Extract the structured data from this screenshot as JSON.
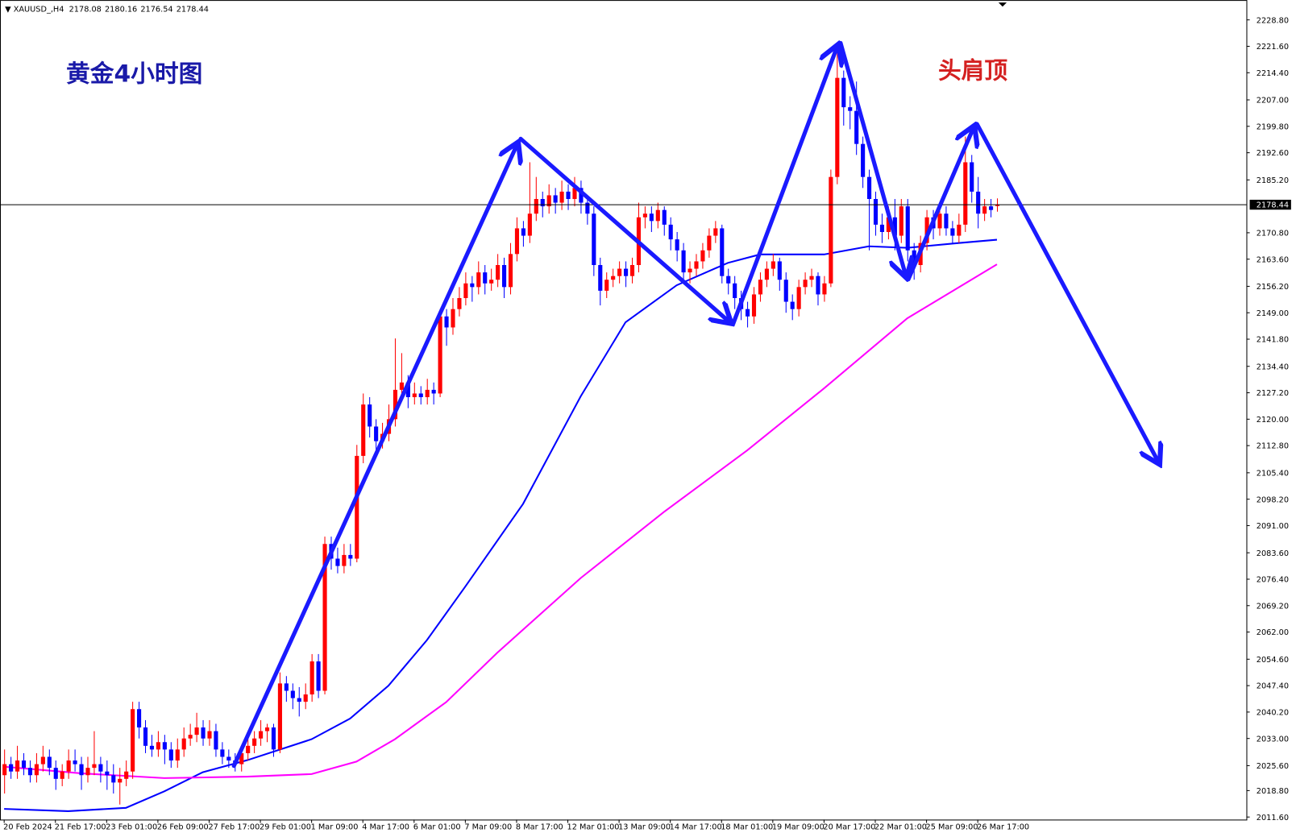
{
  "chart_data": {
    "type": "candlestick",
    "symbol": "XAUUSD_,H4",
    "title": "黄金4小时图",
    "annotation": "头肩顶",
    "up_color": "#ff0000",
    "down_color": "#0000ff",
    "candles": [
      [
        2023,
        2030,
        2018,
        2026
      ],
      [
        2026,
        2028,
        2022,
        2024
      ],
      [
        2024,
        2031,
        2022,
        2027
      ],
      [
        2027,
        2029,
        2023,
        2025
      ],
      [
        2025,
        2027,
        2021,
        2023
      ],
      [
        2023,
        2029,
        2021,
        2026
      ],
      [
        2026,
        2031,
        2024,
        2028
      ],
      [
        2028,
        2030,
        2023,
        2025
      ],
      [
        2025,
        2027,
        2019,
        2022
      ],
      [
        2022,
        2026,
        2020,
        2024
      ],
      [
        2024,
        2030,
        2022,
        2027
      ],
      [
        2027,
        2030,
        2024,
        2026
      ],
      [
        2026,
        2028,
        2019,
        2023
      ],
      [
        2023,
        2028,
        2021,
        2025
      ],
      [
        2025,
        2035,
        2023,
        2026
      ],
      [
        2026,
        2028,
        2021,
        2024
      ],
      [
        2024,
        2027,
        2019,
        2023
      ],
      [
        2023,
        2026,
        2018,
        2021
      ],
      [
        2021,
        2025,
        2015,
        2022
      ],
      [
        2022,
        2027,
        2020,
        2024
      ],
      [
        2024,
        2043,
        2022,
        2041
      ],
      [
        2041,
        2043,
        2033,
        2036
      ],
      [
        2036,
        2038,
        2029,
        2031
      ],
      [
        2031,
        2034,
        2028,
        2030
      ],
      [
        2030,
        2035,
        2028,
        2032
      ],
      [
        2032,
        2034,
        2026,
        2030
      ],
      [
        2030,
        2032,
        2025,
        2027
      ],
      [
        2027,
        2033,
        2025,
        2030
      ],
      [
        2030,
        2036,
        2028,
        2033
      ],
      [
        2033,
        2037,
        2031,
        2034
      ],
      [
        2034,
        2040,
        2032,
        2036
      ],
      [
        2036,
        2038,
        2031,
        2033
      ],
      [
        2033,
        2038,
        2031,
        2035
      ],
      [
        2035,
        2037,
        2028,
        2030
      ],
      [
        2030,
        2032,
        2026,
        2028
      ],
      [
        2028,
        2030,
        2025,
        2027
      ],
      [
        2027,
        2029,
        2024,
        2026
      ],
      [
        2026,
        2031,
        2024,
        2029
      ],
      [
        2029,
        2034,
        2027,
        2031
      ],
      [
        2031,
        2035,
        2029,
        2033
      ],
      [
        2033,
        2038,
        2031,
        2035
      ],
      [
        2035,
        2037,
        2032,
        2036
      ],
      [
        2036,
        2037,
        2028,
        2030
      ],
      [
        2030,
        2051,
        2029,
        2048
      ],
      [
        2048,
        2050,
        2043,
        2046
      ],
      [
        2046,
        2048,
        2041,
        2044
      ],
      [
        2044,
        2047,
        2039,
        2043
      ],
      [
        2043,
        2048,
        2041,
        2045
      ],
      [
        2045,
        2056,
        2043,
        2054
      ],
      [
        2054,
        2056,
        2044,
        2046
      ],
      [
        2046,
        2088,
        2045,
        2086
      ],
      [
        2086,
        2088,
        2079,
        2082
      ],
      [
        2082,
        2085,
        2078,
        2080
      ],
      [
        2080,
        2086,
        2078,
        2083
      ],
      [
        2083,
        2086,
        2080,
        2082
      ],
      [
        2082,
        2113,
        2081,
        2110
      ],
      [
        2110,
        2127,
        2108,
        2124
      ],
      [
        2124,
        2126,
        2115,
        2118
      ],
      [
        2118,
        2120,
        2111,
        2114
      ],
      [
        2114,
        2119,
        2112,
        2116
      ],
      [
        2116,
        2124,
        2114,
        2120
      ],
      [
        2120,
        2142,
        2118,
        2128
      ],
      [
        2128,
        2138,
        2125,
        2130
      ],
      [
        2130,
        2132,
        2123,
        2126
      ],
      [
        2126,
        2130,
        2124,
        2127
      ],
      [
        2127,
        2129,
        2124,
        2126
      ],
      [
        2126,
        2131,
        2124,
        2128
      ],
      [
        2128,
        2130,
        2124,
        2127
      ],
      [
        2127,
        2150,
        2126,
        2148
      ],
      [
        2148,
        2150,
        2140,
        2145
      ],
      [
        2145,
        2153,
        2143,
        2150
      ],
      [
        2150,
        2156,
        2148,
        2153
      ],
      [
        2153,
        2160,
        2151,
        2157
      ],
      [
        2157,
        2159,
        2152,
        2156
      ],
      [
        2156,
        2163,
        2154,
        2160
      ],
      [
        2160,
        2162,
        2154,
        2157
      ],
      [
        2157,
        2161,
        2155,
        2158
      ],
      [
        2158,
        2165,
        2156,
        2162
      ],
      [
        2162,
        2164,
        2153,
        2156
      ],
      [
        2156,
        2168,
        2154,
        2165
      ],
      [
        2165,
        2175,
        2163,
        2172
      ],
      [
        2172,
        2174,
        2167,
        2170
      ],
      [
        2170,
        2190,
        2168,
        2176
      ],
      [
        2176,
        2186,
        2174,
        2180
      ],
      [
        2180,
        2182,
        2175,
        2178
      ],
      [
        2178,
        2184,
        2176,
        2181
      ],
      [
        2181,
        2183,
        2176,
        2179
      ],
      [
        2179,
        2185,
        2177,
        2182
      ],
      [
        2182,
        2184,
        2177,
        2180
      ],
      [
        2180,
        2186,
        2178,
        2183
      ],
      [
        2183,
        2185,
        2176,
        2179
      ],
      [
        2179,
        2181,
        2173,
        2176
      ],
      [
        2176,
        2178,
        2159,
        2162
      ],
      [
        2162,
        2164,
        2151,
        2155
      ],
      [
        2155,
        2160,
        2153,
        2158
      ],
      [
        2158,
        2161,
        2156,
        2159
      ],
      [
        2159,
        2163,
        2157,
        2161
      ],
      [
        2161,
        2163,
        2156,
        2159
      ],
      [
        2159,
        2164,
        2157,
        2162
      ],
      [
        2162,
        2179,
        2160,
        2175
      ],
      [
        2175,
        2178,
        2172,
        2176
      ],
      [
        2176,
        2178,
        2171,
        2174
      ],
      [
        2174,
        2179,
        2172,
        2177
      ],
      [
        2177,
        2178,
        2170,
        2173
      ],
      [
        2173,
        2175,
        2166,
        2169
      ],
      [
        2169,
        2171,
        2163,
        2166
      ],
      [
        2166,
        2168,
        2158,
        2160
      ],
      [
        2160,
        2163,
        2157,
        2161
      ],
      [
        2161,
        2165,
        2159,
        2163
      ],
      [
        2163,
        2168,
        2161,
        2166
      ],
      [
        2166,
        2172,
        2164,
        2170
      ],
      [
        2170,
        2174,
        2168,
        2172
      ],
      [
        2172,
        2173,
        2157,
        2159
      ],
      [
        2159,
        2161,
        2154,
        2157
      ],
      [
        2157,
        2159,
        2150,
        2153
      ],
      [
        2153,
        2155,
        2147,
        2150
      ],
      [
        2150,
        2152,
        2145,
        2148
      ],
      [
        2148,
        2156,
        2146,
        2154
      ],
      [
        2154,
        2160,
        2152,
        2158
      ],
      [
        2158,
        2163,
        2156,
        2161
      ],
      [
        2161,
        2165,
        2159,
        2163
      ],
      [
        2163,
        2164,
        2155,
        2158
      ],
      [
        2158,
        2160,
        2149,
        2152
      ],
      [
        2152,
        2154,
        2147,
        2150
      ],
      [
        2150,
        2158,
        2148,
        2156
      ],
      [
        2156,
        2160,
        2154,
        2158
      ],
      [
        2158,
        2161,
        2156,
        2159
      ],
      [
        2159,
        2160,
        2151,
        2154
      ],
      [
        2154,
        2159,
        2152,
        2157
      ],
      [
        2157,
        2188,
        2156,
        2186
      ],
      [
        2186,
        2222,
        2184,
        2213
      ],
      [
        2213,
        2215,
        2200,
        2205
      ],
      [
        2205,
        2208,
        2199,
        2204
      ],
      [
        2204,
        2212,
        2192,
        2195
      ],
      [
        2195,
        2197,
        2183,
        2186
      ],
      [
        2186,
        2188,
        2166,
        2180
      ],
      [
        2180,
        2182,
        2170,
        2173
      ],
      [
        2173,
        2176,
        2168,
        2171
      ],
      [
        2171,
        2178,
        2169,
        2175
      ],
      [
        2175,
        2180,
        2166,
        2170
      ],
      [
        2170,
        2180,
        2168,
        2178
      ],
      [
        2178,
        2180,
        2163,
        2166
      ],
      [
        2166,
        2168,
        2158,
        2162
      ],
      [
        2162,
        2170,
        2160,
        2168
      ],
      [
        2168,
        2177,
        2166,
        2175
      ],
      [
        2175,
        2177,
        2169,
        2172
      ],
      [
        2172,
        2178,
        2170,
        2176
      ],
      [
        2176,
        2178,
        2170,
        2172
      ],
      [
        2172,
        2174,
        2168,
        2170
      ],
      [
        2170,
        2176,
        2168,
        2173
      ],
      [
        2173,
        2197,
        2171,
        2190
      ],
      [
        2190,
        2192,
        2179,
        2182
      ],
      [
        2182,
        2186,
        2172,
        2176
      ],
      [
        2176,
        2180,
        2174,
        2178
      ],
      [
        2178,
        2180,
        2175,
        2177
      ],
      [
        2178.08,
        2180.16,
        2176.54,
        2178.44
      ]
    ],
    "moving_averages": [
      {
        "color": "#0000ff",
        "x": [
          0,
          10,
          19,
          25,
          31,
          38,
          48,
          54,
          60,
          66,
          72,
          81,
          90,
          97,
          105,
          113,
          118,
          128,
          135,
          141,
          149,
          155
        ],
        "values": [
          2013.8,
          2013.2,
          2014.1,
          2018.6,
          2023.8,
          2027.1,
          2032.8,
          2038.4,
          2047.4,
          2059.8,
          2074.4,
          2096.9,
          2126.2,
          2146.4,
          2156.5,
          2162.6,
          2164.9,
          2164.9,
          2167.1,
          2166.7,
          2168.0,
          2168.9
        ]
      },
      {
        "color": "#ff00ff",
        "x": [
          0,
          12,
          25,
          38,
          48,
          55,
          61,
          69,
          77,
          90,
          103,
          116,
          128,
          141,
          155
        ],
        "values": [
          2025.3,
          2023.5,
          2022.2,
          2022.6,
          2023.3,
          2026.7,
          2032.8,
          2042.9,
          2056.4,
          2076.7,
          2094.7,
          2111.5,
          2128.4,
          2147.5,
          2162.2
        ]
      }
    ],
    "xlim": [
      -0.65,
      193.94
    ],
    "ylim": [
      2010.9,
      2234.2
    ],
    "xticks": [
      {
        "value": 0,
        "label": "20 Feb 2024"
      },
      {
        "value": 8,
        "label": "21 Feb 17:00"
      },
      {
        "value": 16,
        "label": "23 Feb 01:00"
      },
      {
        "value": 24,
        "label": "26 Feb 09:00"
      },
      {
        "value": 32,
        "label": "27 Feb 17:00"
      },
      {
        "value": 40,
        "label": "29 Feb 01:00"
      },
      {
        "value": 48,
        "label": "1 Mar 09:00"
      },
      {
        "value": 56,
        "label": "4 Mar 17:00"
      },
      {
        "value": 64,
        "label": "6 Mar 01:00"
      },
      {
        "value": 72,
        "label": "7 Mar 09:00"
      },
      {
        "value": 80,
        "label": "8 Mar 17:00"
      },
      {
        "value": 88,
        "label": "12 Mar 01:00"
      },
      {
        "value": 96,
        "label": "13 Mar 09:00"
      },
      {
        "value": 104,
        "label": "14 Mar 17:00"
      },
      {
        "value": 112,
        "label": "18 Mar 01:00"
      },
      {
        "value": 120,
        "label": "19 Mar 09:00"
      },
      {
        "value": 128,
        "label": "20 Mar 17:00"
      },
      {
        "value": 136,
        "label": "22 Mar 01:00"
      },
      {
        "value": 144,
        "label": "25 Mar 09:00"
      },
      {
        "value": 152,
        "label": "26 Mar 17:00"
      }
    ],
    "yticks": [
      {
        "value": 2011.6,
        "label": "2011.60"
      },
      {
        "value": 2018.8,
        "label": "2018.80"
      },
      {
        "value": 2025.6,
        "label": "2025.60"
      },
      {
        "value": 2033,
        "label": "2033.00"
      },
      {
        "value": 2040.2,
        "label": "2040.20"
      },
      {
        "value": 2047.4,
        "label": "2047.40"
      },
      {
        "value": 2054.6,
        "label": "2054.60"
      },
      {
        "value": 2062,
        "label": "2062.00"
      },
      {
        "value": 2069.2,
        "label": "2069.20"
      },
      {
        "value": 2076.4,
        "label": "2076.40"
      },
      {
        "value": 2083.6,
        "label": "2083.60"
      },
      {
        "value": 2091,
        "label": "2091.00"
      },
      {
        "value": 2098.2,
        "label": "2098.20"
      },
      {
        "value": 2105.4,
        "label": "2105.40"
      },
      {
        "value": 2112.8,
        "label": "2112.80"
      },
      {
        "value": 2120,
        "label": "2120.00"
      },
      {
        "value": 2127.2,
        "label": "2127.20"
      },
      {
        "value": 2134.4,
        "label": "2134.40"
      },
      {
        "value": 2141.8,
        "label": "2141.80"
      },
      {
        "value": 2149,
        "label": "2149.00"
      },
      {
        "value": 2156.2,
        "label": "2156.20"
      },
      {
        "value": 2163.6,
        "label": "2163.60"
      },
      {
        "value": 2170.8,
        "label": "2170.80"
      },
      {
        "value": 2185.2,
        "label": "2185.20"
      },
      {
        "value": 2192.6,
        "label": "2192.60"
      },
      {
        "value": 2199.8,
        "label": "2199.80"
      },
      {
        "value": 2207,
        "label": "2207.00"
      },
      {
        "value": 2214.4,
        "label": "2214.40"
      },
      {
        "value": 2221.6,
        "label": "2221.60"
      },
      {
        "value": 2228.8,
        "label": "2228.80"
      }
    ]
  }
}
